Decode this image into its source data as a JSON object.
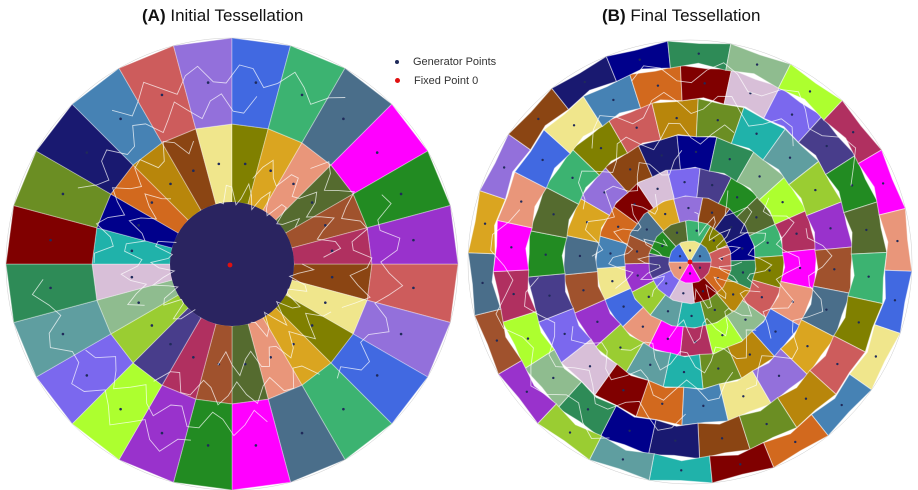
{
  "panels": [
    {
      "letter": "(A)",
      "title": "Initial Tessellation"
    },
    {
      "letter": "(B)",
      "title": "Final Tessellation"
    }
  ],
  "legend": [
    {
      "label": "Generator Points",
      "color": "#1f2a5a"
    },
    {
      "label": "Fixed Point 0",
      "color": "#e01010"
    }
  ],
  "colors": {
    "center_cap": "#2a2460",
    "outline": "#ffffff",
    "palette": [
      "#6b8e23",
      "#9acd32",
      "#4a6e8a",
      "#8b4513",
      "#2e8b57",
      "#b03060",
      "#4169e1",
      "#d2691e",
      "#7b68ee",
      "#556b2f",
      "#cd5c5c",
      "#20b2aa",
      "#9932cc",
      "#daa520",
      "#191970",
      "#8fbc8f",
      "#ff00ff",
      "#f0e68c",
      "#800000",
      "#483d8b",
      "#3cb371",
      "#b8860b",
      "#5f9ea0",
      "#a0522d",
      "#9370db",
      "#00008b",
      "#adff2f",
      "#e9967a",
      "#4682b4",
      "#d8bfd8",
      "#228b22",
      "#808000"
    ]
  }
}
